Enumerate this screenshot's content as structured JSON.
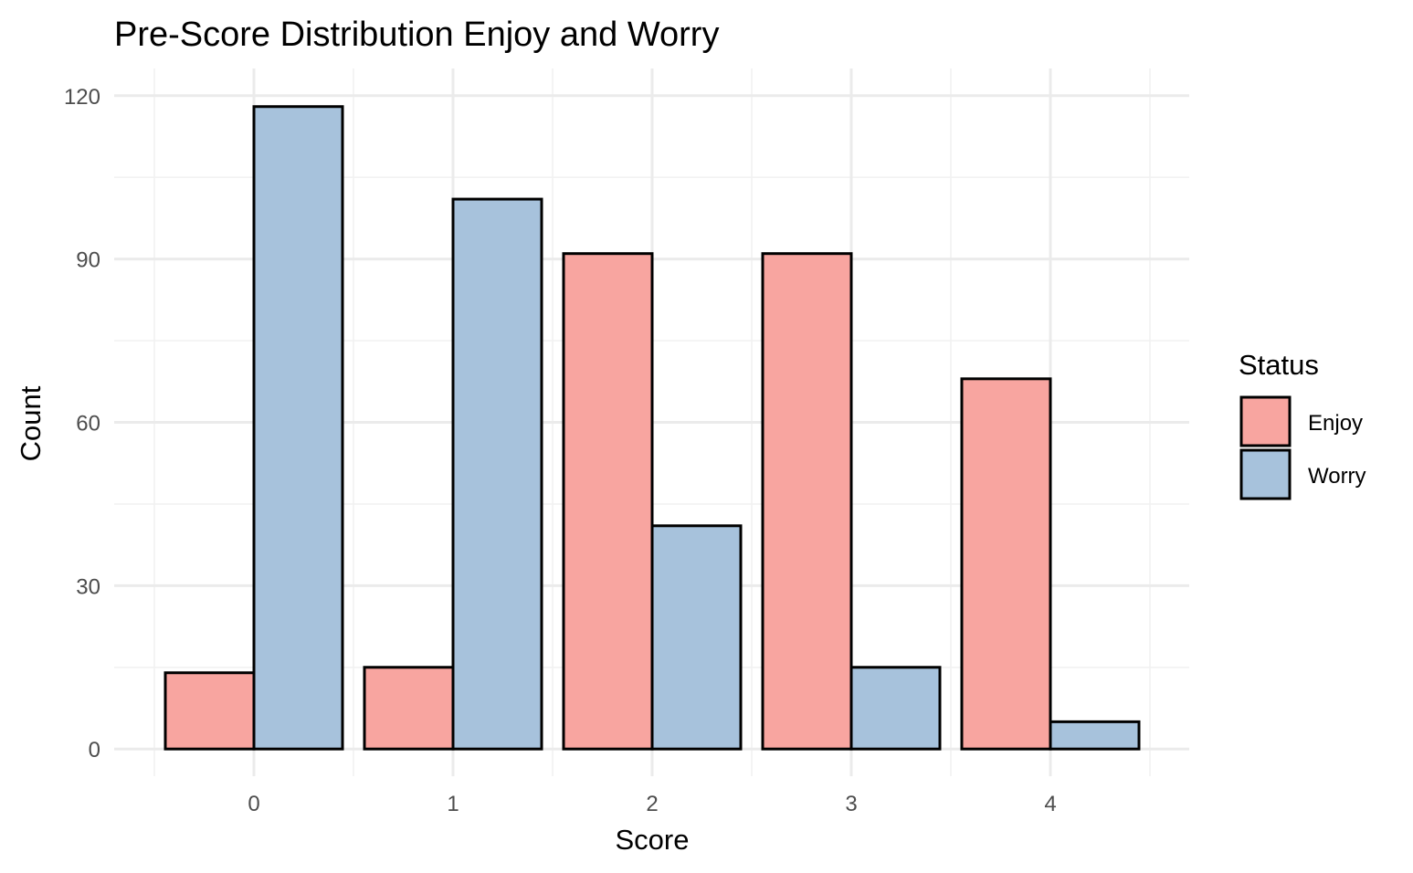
{
  "chart_data": {
    "type": "bar",
    "title": "Pre-Score Distribution Enjoy and Worry",
    "xlabel": "Score",
    "ylabel": "Count",
    "categories": [
      "0",
      "1",
      "2",
      "3",
      "4"
    ],
    "series": [
      {
        "name": "Enjoy",
        "values": [
          14,
          15,
          91,
          91,
          68
        ],
        "color": "#F8A5A0"
      },
      {
        "name": "Worry",
        "values": [
          118,
          101,
          41,
          15,
          5
        ],
        "color": "#A7C2DC"
      }
    ],
    "ylim": [
      -5,
      125
    ],
    "yticks": [
      0,
      30,
      60,
      90,
      120
    ],
    "grid": true,
    "legend": {
      "title": "Status",
      "position": "right"
    },
    "bar_outline_color": "#000000"
  }
}
